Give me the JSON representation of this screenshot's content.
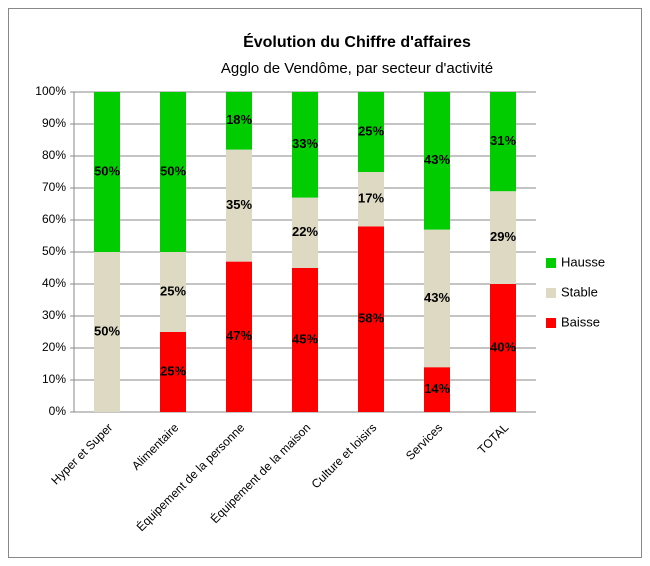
{
  "chart_data": {
    "type": "stacked_bar",
    "title": "Évolution du Chiffre d'affaires",
    "subtitle": "Agglo de Vendôme, par secteur d'activité",
    "categories": [
      "Hyper et Super",
      "Alimentaire",
      "Équipement de la personne",
      "Équipement de la maison",
      "Culture et loisirs",
      "Services",
      "TOTAL"
    ],
    "series": [
      {
        "name": "Baisse",
        "color": "#ff0000",
        "values": [
          0,
          25,
          47,
          45,
          58,
          14,
          40
        ],
        "value_labels": [
          null,
          "25%",
          "47%",
          "45%",
          "58%",
          "14%",
          "40%"
        ]
      },
      {
        "name": "Stable",
        "color": "#ddd9c3",
        "values": [
          50,
          25,
          35,
          22,
          17,
          43,
          29
        ],
        "value_labels": [
          "50%",
          "25%",
          "35%",
          "22%",
          "17%",
          "43%",
          "29%"
        ]
      },
      {
        "name": "Hausse",
        "color": "#00cc00",
        "values": [
          50,
          50,
          18,
          33,
          25,
          43,
          31
        ],
        "value_labels": [
          "50%",
          "50%",
          "18%",
          "33%",
          "25%",
          "43%",
          "31%"
        ]
      }
    ],
    "ylim": [
      0,
      100
    ],
    "yticks": [
      {
        "value": 0,
        "label": "0%"
      },
      {
        "value": 10,
        "label": "10%"
      },
      {
        "value": 20,
        "label": "20%"
      },
      {
        "value": 30,
        "label": "30%"
      },
      {
        "value": 40,
        "label": "40%"
      },
      {
        "value": 50,
        "label": "50%"
      },
      {
        "value": 60,
        "label": "60%"
      },
      {
        "value": 70,
        "label": "70%"
      },
      {
        "value": 80,
        "label": "80%"
      },
      {
        "value": 90,
        "label": "90%"
      },
      {
        "value": 100,
        "label": "100%"
      }
    ],
    "grid": true,
    "legend": "right"
  }
}
